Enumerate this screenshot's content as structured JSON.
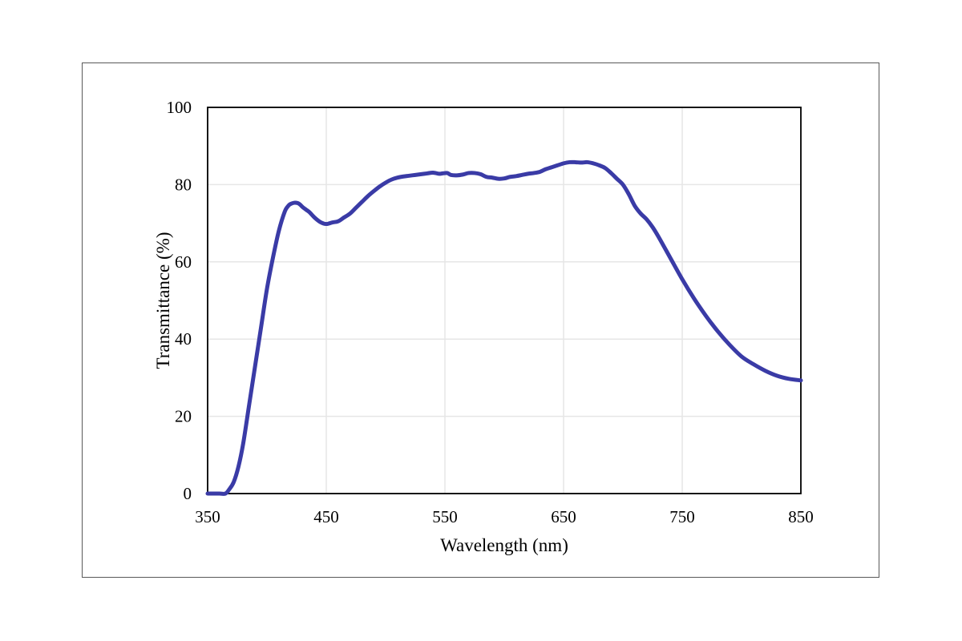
{
  "chart_data": {
    "type": "line",
    "xlabel": "Wavelength (nm)",
    "ylabel": "Transmittance (%)",
    "xlim": [
      350,
      850
    ],
    "ylim": [
      0,
      100
    ],
    "x_ticks": [
      "350",
      "450",
      "550",
      "650",
      "750",
      "850"
    ],
    "y_ticks": [
      "0",
      "20",
      "40",
      "60",
      "80",
      "100"
    ],
    "grid": true,
    "legend": "none",
    "line_color": "#3A3BA6",
    "series": [
      {
        "x": [
          350,
          360,
          365,
          368,
          372,
          376,
          380,
          385,
          390,
          395,
          400,
          405,
          410,
          415,
          418,
          420,
          423,
          426,
          428,
          430,
          433,
          436,
          440,
          445,
          450,
          455,
          460,
          465,
          470,
          475,
          480,
          485,
          490,
          495,
          500,
          505,
          510,
          515,
          520,
          525,
          530,
          535,
          540,
          545,
          548,
          552,
          555,
          560,
          565,
          570,
          575,
          580,
          585,
          590,
          595,
          600,
          605,
          610,
          615,
          620,
          625,
          630,
          635,
          640,
          645,
          650,
          655,
          660,
          665,
          670,
          675,
          680,
          685,
          690,
          695,
          700,
          705,
          710,
          715,
          720,
          725,
          730,
          740,
          750,
          760,
          770,
          780,
          790,
          800,
          810,
          820,
          830,
          840,
          850
        ],
        "y": [
          0,
          0,
          0,
          1,
          3,
          7,
          13,
          23,
          33,
          43,
          53,
          61,
          68,
          73,
          74.5,
          75,
          75.3,
          75.2,
          74.8,
          74.2,
          73.5,
          72.8,
          71.5,
          70.3,
          69.8,
          70.2,
          70.5,
          71.5,
          72.5,
          74,
          75.5,
          77,
          78.3,
          79.5,
          80.5,
          81.3,
          81.8,
          82.1,
          82.3,
          82.5,
          82.7,
          82.9,
          83.1,
          82.8,
          82.9,
          83.0,
          82.5,
          82.4,
          82.6,
          83.0,
          83.0,
          82.7,
          82.0,
          81.8,
          81.5,
          81.6,
          82.0,
          82.2,
          82.5,
          82.8,
          83.0,
          83.3,
          84.0,
          84.5,
          85.0,
          85.5,
          85.8,
          85.8,
          85.7,
          85.8,
          85.5,
          85.0,
          84.3,
          83.0,
          81.5,
          80.0,
          77.5,
          74.5,
          72.5,
          71.0,
          69.0,
          66.5,
          61.0,
          55.5,
          50.5,
          46.0,
          42.0,
          38.5,
          35.5,
          33.5,
          31.8,
          30.5,
          29.7,
          29.3
        ]
      }
    ]
  }
}
